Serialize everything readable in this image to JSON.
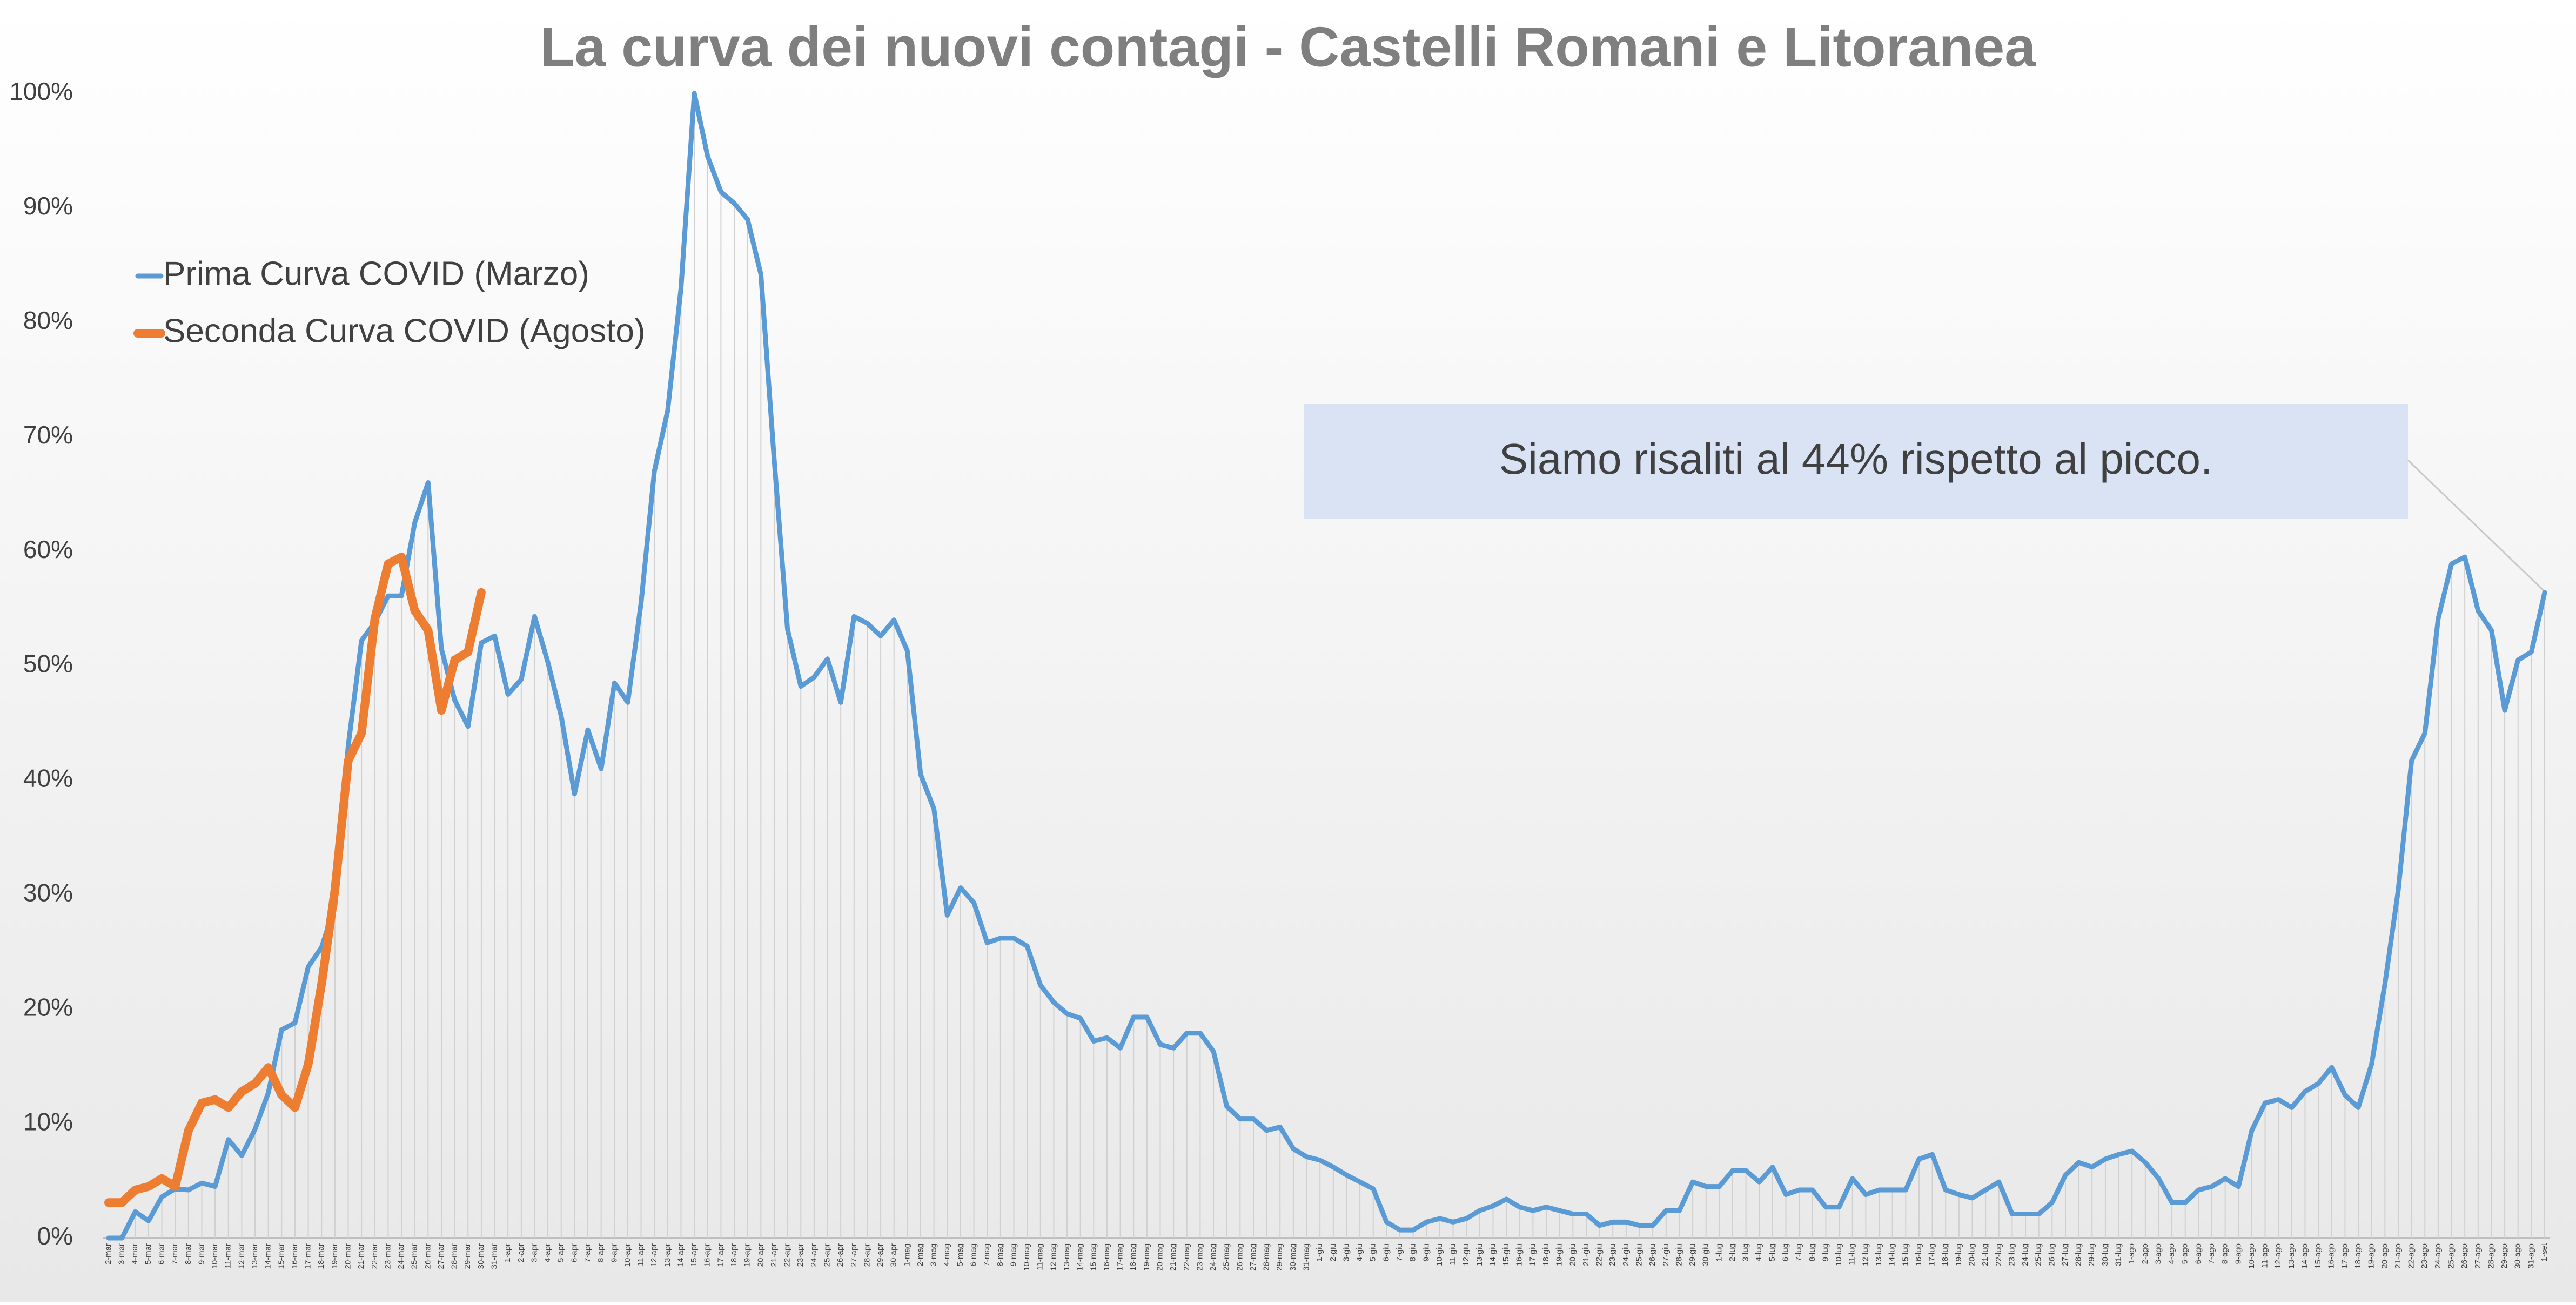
{
  "chart_data": {
    "type": "line",
    "title": "La curva dei nuovi contagi - Castelli Romani e Litoranea",
    "annotation": "Siamo risaliti al 44% rispetto al picco.",
    "legend": "top-left",
    "categories": [
      "2-mar",
      "3-mar",
      "4-mar",
      "5-mar",
      "6-mar",
      "7-mar",
      "8-mar",
      "9-mar",
      "10-mar",
      "11-mar",
      "12-mar",
      "13-mar",
      "14-mar",
      "15-mar",
      "16-mar",
      "17-mar",
      "18-mar",
      "19-mar",
      "20-mar",
      "21-mar",
      "22-mar",
      "23-mar",
      "24-mar",
      "25-mar",
      "26-mar",
      "27-mar",
      "28-mar",
      "29-mar",
      "30-mar",
      "31-mar",
      "1-apr",
      "2-apr",
      "3-apr",
      "4-apr",
      "5-apr",
      "6-apr",
      "7-apr",
      "8-apr",
      "9-apr",
      "10-apr",
      "11-apr",
      "12-apr",
      "13-apr",
      "14-apr",
      "15-apr",
      "16-apr",
      "17-apr",
      "18-apr",
      "19-apr",
      "20-apr",
      "21-apr",
      "22-apr",
      "23-apr",
      "24-apr",
      "25-apr",
      "26-apr",
      "27-apr",
      "28-apr",
      "29-apr",
      "30-apr",
      "1-mag",
      "2-mag",
      "3-mag",
      "4-mag",
      "5-mag",
      "6-mag",
      "7-mag",
      "8-mag",
      "9-mag",
      "10-mag",
      "11-mag",
      "12-mag",
      "13-mag",
      "14-mag",
      "15-mag",
      "16-mag",
      "17-mag",
      "18-mag",
      "19-mag",
      "20-mag",
      "21-mag",
      "22-mag",
      "23-mag",
      "24-mag",
      "25-mag",
      "26-mag",
      "27-mag",
      "28-mag",
      "29-mag",
      "30-mag",
      "31-mag",
      "1-giu",
      "2-giu",
      "3-giu",
      "4-giu",
      "5-giu",
      "6-giu",
      "7-giu",
      "8-giu",
      "9-giu",
      "10-giu",
      "11-giu",
      "12-giu",
      "13-giu",
      "14-giu",
      "15-giu",
      "16-giu",
      "17-giu",
      "18-giu",
      "19-giu",
      "20-giu",
      "21-giu",
      "22-giu",
      "23-giu",
      "24-giu",
      "25-giu",
      "26-giu",
      "27-giu",
      "28-giu",
      "29-giu",
      "30-giu",
      "1-lug",
      "2-lug",
      "3-lug",
      "4-lug",
      "5-lug",
      "6-lug",
      "7-lug",
      "8-lug",
      "9-lug",
      "10-lug",
      "11-lug",
      "12-lug",
      "13-lug",
      "14-lug",
      "15-lug",
      "16-lug",
      "17-lug",
      "18-lug",
      "19-lug",
      "20-lug",
      "21-lug",
      "22-lug",
      "23-lug",
      "24-lug",
      "25-lug",
      "26-lug",
      "27-lug",
      "28-lug",
      "29-lug",
      "30-lug",
      "31-lug",
      "1-ago",
      "2-ago",
      "3-ago",
      "4-ago",
      "5-ago",
      "6-ago",
      "7-ago",
      "8-ago",
      "9-ago",
      "10-ago",
      "11-ago",
      "12-ago",
      "13-ago",
      "14-ago",
      "15-ago",
      "16-ago",
      "17-ago",
      "18-ago",
      "19-ago",
      "20-ago",
      "21-ago",
      "22-ago",
      "23-ago",
      "24-ago",
      "25-ago",
      "26-ago",
      "27-ago",
      "28-ago",
      "29-ago",
      "30-ago",
      "31-ago",
      "1-set"
    ],
    "series": [
      {
        "name": "Prima Curva COVID (Marzo)",
        "color": "#5b9bd5",
        "values": [
          0,
          0,
          2.3,
          1.5,
          3.6,
          4.3,
          4.2,
          4.8,
          4.5,
          8.6,
          7.2,
          9.5,
          12.7,
          18.2,
          18.8,
          23.7,
          25.4,
          29,
          43,
          52.2,
          53.8,
          56.1,
          56.1,
          62.5,
          66,
          51.5,
          47,
          44.7,
          52,
          52.6,
          47.5,
          48.8,
          54.3,
          50.3,
          45.6,
          38.8,
          44.4,
          41,
          48.5,
          46.8,
          55.5,
          67,
          72.3,
          83,
          100,
          94.5,
          91.4,
          90.4,
          89,
          84.2,
          68,
          53.2,
          48.2,
          49,
          50.6,
          46.8,
          54.3,
          53.7,
          52.6,
          54,
          51.3,
          40.5,
          37.5,
          28.2,
          30.6,
          29.3,
          25.8,
          26.2,
          26.2,
          25.5,
          22.1,
          20.6,
          19.6,
          19.2,
          17.2,
          17.5,
          16.6,
          19.3,
          19.3,
          16.9,
          16.6,
          17.9,
          17.9,
          16.3,
          11.5,
          10.4,
          10.4,
          9.4,
          9.7,
          7.8,
          7.1,
          6.8,
          6.2,
          5.5,
          4.9,
          4.3,
          1.4,
          0.7,
          0.7,
          1.4,
          1.7,
          1.4,
          1.7,
          2.4,
          2.8,
          3.4,
          2.7,
          2.4,
          2.7,
          2.4,
          2.1,
          2.1,
          1.1,
          1.4,
          1.4,
          1.1,
          1.1,
          2.4,
          2.4,
          4.9,
          4.5,
          4.5,
          5.9,
          5.9,
          4.9,
          6.2,
          3.8,
          4.2,
          4.2,
          2.7,
          2.7,
          5.2,
          3.8,
          4.2,
          4.2,
          4.2,
          6.9,
          7.3,
          4.2,
          3.8,
          3.5,
          4.2,
          4.9,
          2.1,
          2.1,
          2.1,
          3.1,
          5.5,
          6.6,
          6.2,
          6.9,
          7.3,
          7.6,
          6.6,
          5.2,
          3.1,
          3.1,
          4.2,
          4.5,
          5.2,
          4.5,
          9.4,
          11.8,
          12.1,
          11.4,
          12.8,
          13.5,
          14.9,
          12.5,
          11.4,
          15.2,
          22.2,
          30.4,
          41.7,
          44.1,
          54.1,
          58.9,
          59.5,
          54.8,
          53.1,
          46.1,
          50.5,
          51.2,
          56.4
        ]
      },
      {
        "name": "Seconda Curva COVID (Agosto)",
        "color": "#ed7d31",
        "values": [
          3.1,
          3.1,
          4.2,
          4.5,
          5.2,
          4.5,
          9.4,
          11.8,
          12.1,
          11.4,
          12.8,
          13.5,
          14.9,
          12.5,
          11.4,
          15.2,
          22.2,
          30.4,
          41.7,
          44.1,
          54.1,
          58.9,
          59.5,
          54.8,
          53.1,
          46.1,
          50.5,
          51.2,
          56.4,
          null,
          null,
          null,
          null,
          null,
          null,
          null,
          null,
          null,
          null,
          null,
          null,
          null,
          null,
          null,
          null,
          null,
          null,
          null,
          null,
          null,
          null,
          null,
          null,
          null,
          null,
          null,
          null,
          null,
          null,
          null,
          null,
          null,
          null,
          null,
          null,
          null,
          null,
          null,
          null,
          null,
          null,
          null,
          null,
          null,
          null,
          null,
          null,
          null,
          null,
          null,
          null,
          null,
          null,
          null,
          null,
          null,
          null,
          null,
          null,
          null,
          null,
          null,
          null,
          null,
          null,
          null,
          null,
          null,
          null,
          null,
          null,
          null,
          null,
          null,
          null,
          null,
          null,
          null,
          null,
          null,
          null,
          null,
          null,
          null,
          null,
          null,
          null,
          null,
          null,
          null,
          null,
          null,
          null,
          null,
          null,
          null,
          null,
          null,
          null,
          null,
          null,
          null,
          null,
          null,
          null,
          null,
          null,
          null,
          null,
          null,
          null,
          null,
          null,
          null,
          null,
          null,
          null,
          null,
          null,
          null,
          null,
          null,
          null,
          null,
          null,
          null,
          null,
          null,
          null,
          null,
          null,
          null,
          null,
          null,
          null,
          null,
          null,
          null,
          null,
          null,
          null,
          null,
          null,
          null,
          null,
          null,
          null,
          null,
          null,
          null,
          null,
          null,
          null,
          null
        ]
      }
    ],
    "ylim": [
      0,
      100
    ],
    "yticks": [
      {
        "value": 0,
        "label": "0%"
      },
      {
        "value": 10,
        "label": "10%"
      },
      {
        "value": 20,
        "label": "20%"
      },
      {
        "value": 30,
        "label": "30%"
      },
      {
        "value": 40,
        "label": "40%"
      },
      {
        "value": 50,
        "label": "50%"
      },
      {
        "value": 60,
        "label": "60%"
      },
      {
        "value": 70,
        "label": "70%"
      },
      {
        "value": 80,
        "label": "80%"
      },
      {
        "value": 90,
        "label": "90%"
      },
      {
        "value": 100,
        "label": "100%"
      }
    ],
    "grid": false
  }
}
